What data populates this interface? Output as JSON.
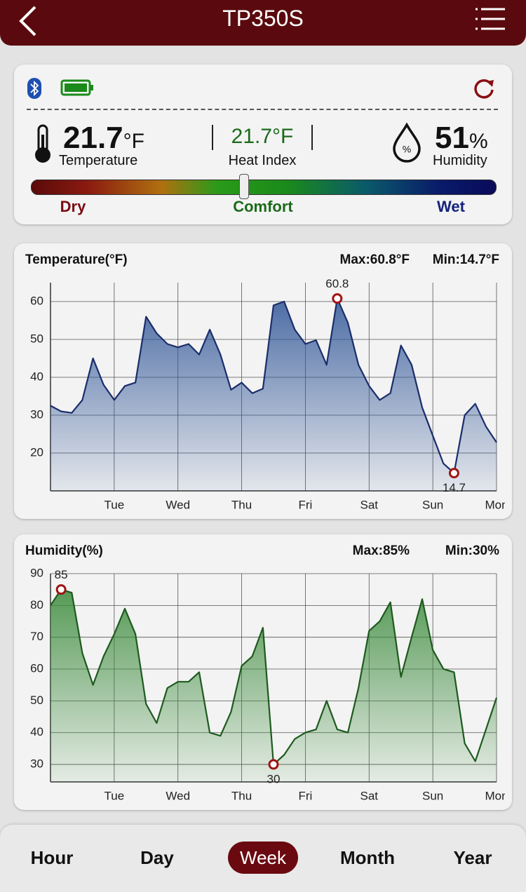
{
  "header": {
    "title": "TP350S"
  },
  "status": {
    "temperature_value": "21.7",
    "temperature_unit": "°F",
    "temperature_label": "Temperature",
    "heat_index_value": "21.7°F",
    "heat_index_label": "Heat Index",
    "humidity_value": "51",
    "humidity_unit": "%",
    "humidity_label": "Humidity"
  },
  "comfort_scale": [
    "Dry",
    "Comfort",
    "Wet"
  ],
  "tabs": {
    "items": [
      "Hour",
      "Day",
      "Week",
      "Month",
      "Year"
    ],
    "active": 2
  },
  "chart_data": [
    {
      "type": "area",
      "title": "Temperature(°F)",
      "max_label": "Max:60.8°F",
      "min_label": "Min:14.7°F",
      "categories": [
        null,
        null,
        null,
        null,
        null,
        null,
        "Tue",
        null,
        null,
        null,
        null,
        null,
        "Wed",
        null,
        null,
        null,
        null,
        null,
        "Thu",
        null,
        null,
        null,
        null,
        null,
        "Fri",
        null,
        null,
        null,
        null,
        null,
        "Sat",
        null,
        null,
        null,
        null,
        null,
        "Sun",
        null,
        null,
        null,
        null,
        null,
        "Mon"
      ],
      "values": [
        32.5,
        31,
        30.6,
        34,
        45,
        38,
        34,
        37.7,
        38.6,
        56,
        51.6,
        48.8,
        47.9,
        48.8,
        46,
        52.6,
        46,
        36.7,
        38.6,
        35.8,
        37,
        59,
        60,
        52.6,
        48.8,
        49.8,
        43.3,
        60.8,
        54.4,
        43.3,
        37.7,
        34,
        35.8,
        48.4,
        43.3,
        32,
        24.6,
        17.2,
        14.7,
        30,
        33,
        27,
        22.8
      ],
      "color": "#1b2d6b",
      "fill_color": "#2f5597",
      "ylim": [
        10,
        65
      ],
      "yticks": [
        20,
        30,
        40,
        50,
        60
      ],
      "grid": true
    },
    {
      "type": "area",
      "title": "Humidity(%)",
      "max_label": "Max:85%",
      "min_label": "Min:30%",
      "categories": [
        null,
        null,
        null,
        null,
        null,
        null,
        "Tue",
        null,
        null,
        null,
        null,
        null,
        "Wed",
        null,
        null,
        null,
        null,
        null,
        "Thu",
        null,
        null,
        null,
        null,
        null,
        "Fri",
        null,
        null,
        null,
        null,
        null,
        "Sat",
        null,
        null,
        null,
        null,
        null,
        "Sun",
        null,
        null,
        null,
        null,
        null,
        "Mon"
      ],
      "values": [
        80,
        85,
        84,
        65,
        55,
        64,
        71,
        79,
        71,
        49,
        43,
        54,
        56,
        56,
        59,
        40,
        39,
        46.5,
        61,
        64,
        73,
        30,
        33,
        38,
        40,
        41,
        50,
        41,
        40,
        54,
        72,
        75,
        81,
        57.5,
        70,
        82,
        66,
        60,
        59,
        36.6,
        31,
        41,
        51
      ],
      "color": "#1e5a1e",
      "fill_color": "#3a8a3a",
      "ylim": [
        24.5,
        90
      ],
      "yticks": [
        30,
        40,
        50,
        60,
        70,
        80,
        90
      ],
      "grid": true
    }
  ]
}
